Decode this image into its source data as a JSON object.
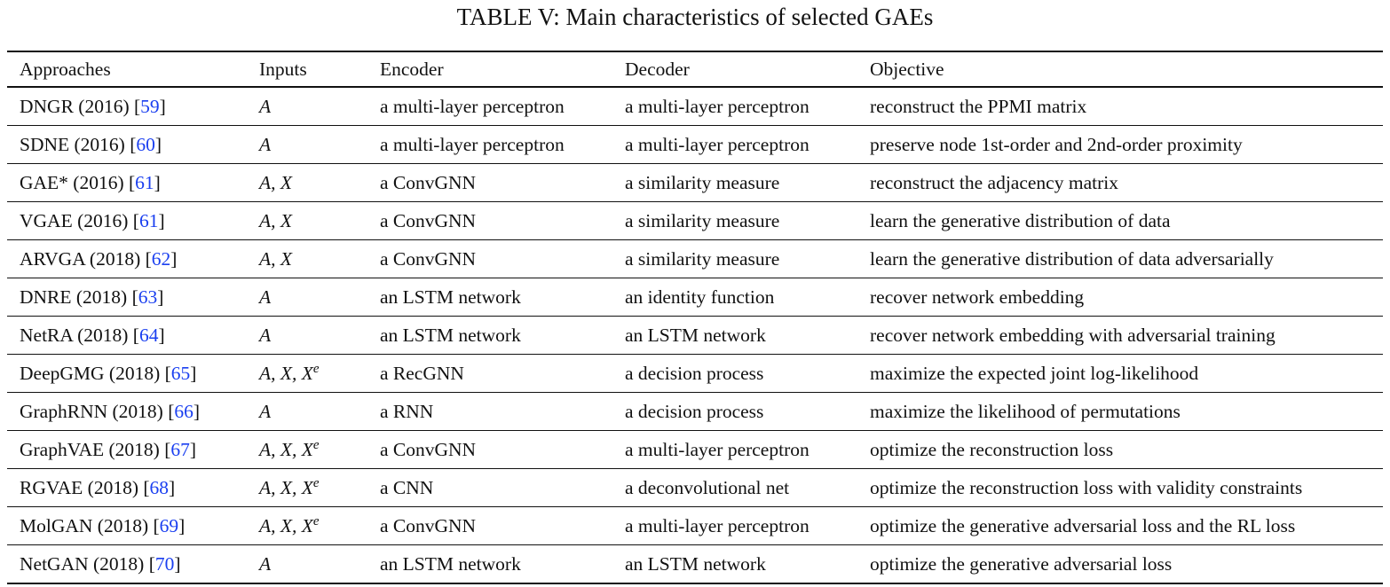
{
  "caption": "TABLE V: Main characteristics of selected GAEs",
  "headers": {
    "approaches": "Approaches",
    "inputs": "Inputs",
    "encoder": "Encoder",
    "decoder": "Decoder",
    "objective": "Objective"
  },
  "rows": [
    {
      "name": "DNGR (2016) [",
      "ref": "59",
      "close": "]",
      "inputs": "A",
      "encoder": "a multi-layer perceptron",
      "decoder": "a multi-layer perceptron",
      "objective": "reconstruct the PPMI matrix"
    },
    {
      "name": "SDNE (2016) [",
      "ref": "60",
      "close": "]",
      "inputs": "A",
      "encoder": "a multi-layer perceptron",
      "decoder": "a multi-layer perceptron",
      "objective": "preserve node 1st-order and 2nd-order proximity"
    },
    {
      "name": "GAE* (2016) [",
      "ref": "61",
      "close": "]",
      "inputs": "A, X",
      "encoder": "a ConvGNN",
      "decoder": "a similarity measure",
      "objective": "reconstruct the adjacency matrix"
    },
    {
      "name": "VGAE (2016) [",
      "ref": "61",
      "close": "]",
      "inputs": "A, X",
      "encoder": "a ConvGNN",
      "decoder": "a similarity measure",
      "objective": "learn the generative distribution of data"
    },
    {
      "name": "ARVGA (2018) [",
      "ref": "62",
      "close": "]",
      "inputs": "A, X",
      "encoder": "a ConvGNN",
      "decoder": "a similarity measure",
      "objective": "learn the generative distribution of data adversarially"
    },
    {
      "name": "DNRE (2018) [",
      "ref": "63",
      "close": "]",
      "inputs": "A",
      "encoder": "an LSTM network",
      "decoder": "an identity function",
      "objective": "recover network embedding"
    },
    {
      "name": "NetRA (2018) [",
      "ref": "64",
      "close": "]",
      "inputs": "A",
      "encoder": "an LSTM network",
      "decoder": "an LSTM network",
      "objective": "recover network embedding with adversarial training"
    },
    {
      "name": "DeepGMG (2018) [",
      "ref": "65",
      "close": "]",
      "inputs": "A, X, X",
      "sup": "e",
      "encoder": "a RecGNN",
      "decoder": "a decision process",
      "objective": "maximize the expected joint log-likelihood"
    },
    {
      "name": "GraphRNN (2018) [",
      "ref": "66",
      "close": "]",
      "inputs": "A",
      "encoder": "a RNN",
      "decoder": "a decision process",
      "objective": "maximize the likelihood of permutations"
    },
    {
      "name": "GraphVAE (2018) [",
      "ref": "67",
      "close": "]",
      "inputs": "A, X, X",
      "sup": "e",
      "encoder": "a ConvGNN",
      "decoder": "a multi-layer perceptron",
      "objective": "optimize the reconstruction loss"
    },
    {
      "name": "RGVAE (2018) [",
      "ref": "68",
      "close": "]",
      "inputs": "A, X, X",
      "sup": "e",
      "encoder": "a CNN",
      "decoder": "a deconvolutional net",
      "objective": "optimize the reconstruction loss with validity constraints"
    },
    {
      "name": "MolGAN (2018) [",
      "ref": "69",
      "close": "]",
      "inputs": "A, X, X",
      "sup": "e",
      "encoder": "a ConvGNN",
      "decoder": "a multi-layer perceptron",
      "objective": "optimize the generative adversarial loss and the RL loss"
    },
    {
      "name": "NetGAN (2018) [",
      "ref": "70",
      "close": "]",
      "inputs": "A",
      "encoder": "an LSTM network",
      "decoder": "an LSTM network",
      "objective": "optimize the generative adversarial loss"
    }
  ]
}
